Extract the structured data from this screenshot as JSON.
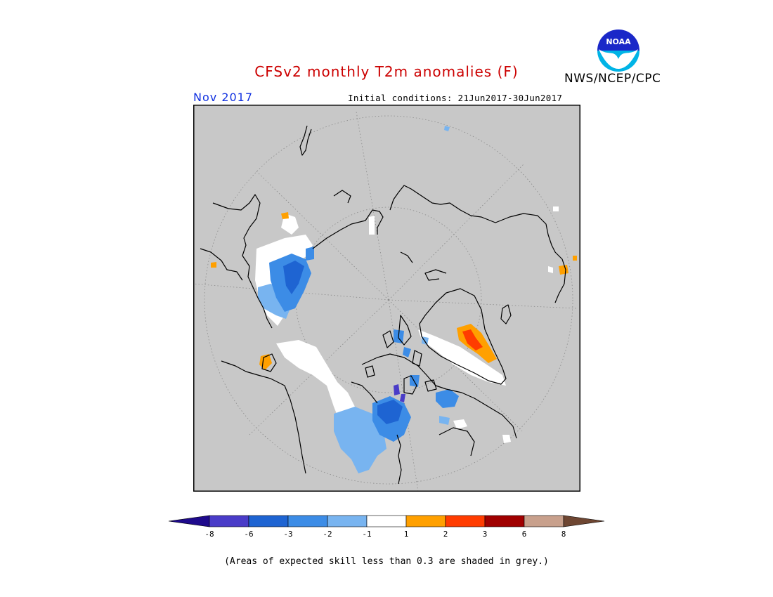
{
  "header": {
    "title": "CFSv2 monthly T2m anomalies (F)",
    "period": "Nov 2017",
    "initial_conditions": "Initial conditions: 21Jun2017-30Jun2017",
    "agency": "NWS/NCEP/CPC",
    "logo_text": "NOAA"
  },
  "map": {
    "projection": "north-polar-stereographic",
    "skill_mask_color": "#c8c8c8"
  },
  "colorbar": {
    "colors": [
      "#1e0a8c",
      "#4a3cc8",
      "#1e64d2",
      "#3c8ce6",
      "#78b4f0",
      "#ffffff",
      "#ffa000",
      "#ff3c00",
      "#a00000",
      "#c8a08c",
      "#6e4632"
    ],
    "labels": [
      "-8",
      "-6",
      "-3",
      "-2",
      "-1",
      "1",
      "2",
      "3",
      "6",
      "8"
    ]
  },
  "footnote": "(Areas of expected skill less than 0.3 are shaded in grey.)"
}
